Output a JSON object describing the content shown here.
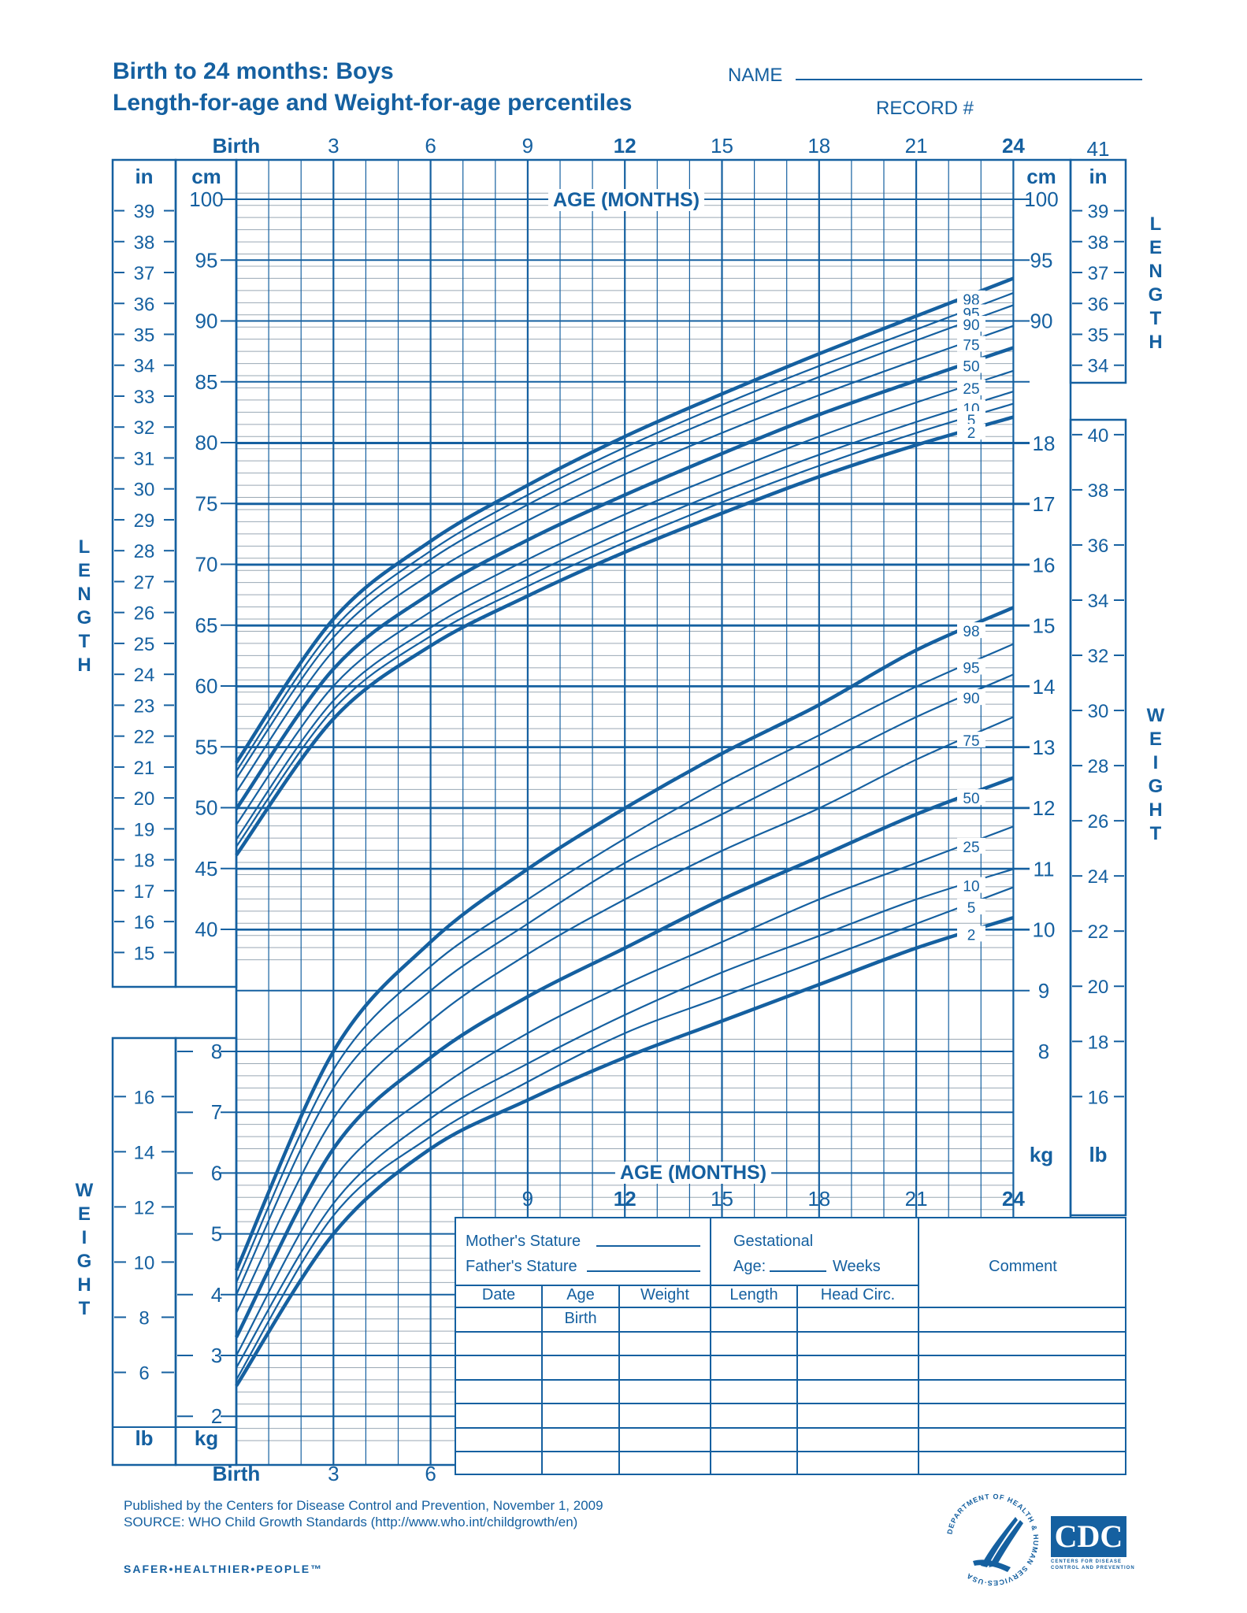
{
  "header": {
    "title_line1": "Birth to 24 months: Boys",
    "title_line2": "Length-for-age and Weight-for-age percentiles",
    "name_label": "NAME",
    "record_label": "RECORD #"
  },
  "axes": {
    "top_age_ticks": [
      "Birth",
      "3",
      "6",
      "9",
      "12",
      "15",
      "18",
      "21",
      "24"
    ],
    "bottom_age_ticks_left": [
      "Birth",
      "3",
      "6"
    ],
    "bottom_age_ticks_right": [
      "9",
      "12",
      "15",
      "18",
      "21",
      "24"
    ],
    "age_label": "AGE (MONTHS)",
    "top_right_in": "41",
    "length_cm_label": "cm",
    "length_in_label": "in",
    "weight_kg_label": "kg",
    "weight_lb_label": "lb",
    "side_length": "LENGTH",
    "side_weight": "WEIGHT"
  },
  "form": {
    "mothers_stature": "Mother's Stature",
    "fathers_stature": "Father's Stature",
    "gestational": "Gestational",
    "age_weeks_prefix": "Age:",
    "age_weeks_suffix": "Weeks",
    "comment": "Comment",
    "columns": [
      "Date",
      "Age",
      "Weight",
      "Length",
      "Head  Circ."
    ],
    "first_row_age": "Birth",
    "row_count": 7
  },
  "footer": {
    "published": "Published by the Centers for Disease Control and Prevention, November 1, 2009",
    "source": "SOURCE:  WHO Child Growth Standards (http://www.who.int/childgrowth/en)",
    "slogan": "SAFER•HEALTHIER•PEOPLE™",
    "hhs_seal": "DEPARTMENT OF HEALTH & HUMAN SERVICES·USA",
    "cdc_logo": "CDC",
    "cdc_sub1": "CENTERS FOR DISEASE",
    "cdc_sub2": "CONTROL AND PREVENTION"
  },
  "colors": {
    "ink": "#1560a0",
    "minor_grid": "#9aa8b4",
    "paper": "#ffffff"
  },
  "chart_data": [
    {
      "type": "line",
      "title": "Length-for-age percentiles, Boys, Birth to 24 months",
      "xlabel": "AGE (MONTHS)",
      "ylabel": "LENGTH (cm)",
      "secondary_ylabel": "LENGTH (in)",
      "x": [
        0,
        3,
        6,
        9,
        12,
        15,
        18,
        21,
        24
      ],
      "xlim": [
        0,
        24
      ],
      "ylim": [
        40,
        100
      ],
      "y_ticks_cm": [
        40,
        45,
        50,
        55,
        60,
        65,
        70,
        75,
        80,
        85,
        90,
        95,
        100
      ],
      "y_ticks_in": [
        15,
        16,
        17,
        18,
        19,
        20,
        21,
        22,
        23,
        24,
        25,
        26,
        27,
        28,
        29,
        30,
        31,
        32,
        33,
        34,
        35,
        36,
        37,
        38,
        39
      ],
      "right_y_ticks_cm": [
        90,
        95,
        100
      ],
      "right_y_ticks_in": [
        34,
        35,
        36,
        37,
        38,
        39
      ],
      "grid": true,
      "legend_position": "right end labels",
      "series": [
        {
          "name": "98",
          "values": [
            53.7,
            65.5,
            71.9,
            76.5,
            80.5,
            84.0,
            87.3,
            90.4,
            93.5
          ]
        },
        {
          "name": "95",
          "values": [
            53.0,
            64.7,
            71.1,
            75.7,
            79.6,
            83.1,
            86.3,
            89.3,
            92.3
          ]
        },
        {
          "name": "90",
          "values": [
            52.4,
            64.0,
            70.4,
            74.9,
            78.8,
            82.2,
            85.4,
            88.4,
            91.3
          ]
        },
        {
          "name": "75",
          "values": [
            51.3,
            62.9,
            69.2,
            73.6,
            77.4,
            80.8,
            83.9,
            86.8,
            89.6
          ]
        },
        {
          "name": "50",
          "values": [
            49.9,
            61.4,
            67.6,
            72.0,
            75.7,
            79.1,
            82.3,
            85.1,
            87.8
          ]
        },
        {
          "name": "25",
          "values": [
            48.6,
            60.0,
            66.1,
            70.4,
            74.1,
            77.4,
            80.5,
            83.3,
            85.9
          ]
        },
        {
          "name": "10",
          "values": [
            47.4,
            58.8,
            64.8,
            69.0,
            72.7,
            76.0,
            79.0,
            81.7,
            84.2
          ]
        },
        {
          "name": "5",
          "values": [
            46.8,
            58.1,
            64.1,
            68.2,
            71.8,
            75.1,
            78.1,
            80.8,
            83.2
          ]
        },
        {
          "name": "2",
          "values": [
            46.1,
            57.3,
            63.3,
            67.4,
            71.0,
            74.2,
            77.2,
            79.8,
            82.1
          ]
        }
      ]
    },
    {
      "type": "line",
      "title": "Weight-for-age percentiles, Boys, Birth to 24 months",
      "xlabel": "AGE (MONTHS)",
      "ylabel": "WEIGHT (kg)",
      "secondary_ylabel": "WEIGHT (lb)",
      "x": [
        0,
        3,
        6,
        9,
        12,
        15,
        18,
        21,
        24
      ],
      "xlim": [
        0,
        24
      ],
      "ylim": [
        1.6,
        18.5
      ],
      "y_ticks_kg_left": [
        2,
        3,
        4,
        5,
        6,
        7,
        8
      ],
      "y_ticks_lb_left": [
        6,
        8,
        10,
        12,
        14,
        16
      ],
      "y_ticks_kg_right": [
        8,
        9,
        10,
        11,
        12,
        13,
        14,
        15,
        16,
        17,
        18
      ],
      "y_ticks_lb_right": [
        16,
        18,
        20,
        22,
        24,
        26,
        28,
        30,
        32,
        34,
        36,
        38,
        40
      ],
      "grid": true,
      "legend_position": "right end labels",
      "series": [
        {
          "name": "98",
          "values": [
            4.4,
            8.0,
            9.8,
            11.0,
            12.0,
            12.9,
            13.7,
            14.6,
            15.3
          ]
        },
        {
          "name": "95",
          "values": [
            4.2,
            7.7,
            9.4,
            10.5,
            11.5,
            12.4,
            13.2,
            14.0,
            14.7
          ]
        },
        {
          "name": "90",
          "values": [
            4.0,
            7.4,
            9.0,
            10.1,
            11.1,
            11.9,
            12.7,
            13.5,
            14.2
          ]
        },
        {
          "name": "75",
          "values": [
            3.7,
            6.9,
            8.5,
            9.6,
            10.5,
            11.3,
            12.0,
            12.8,
            13.5
          ]
        },
        {
          "name": "50",
          "values": [
            3.3,
            6.4,
            7.9,
            8.9,
            9.7,
            10.5,
            11.2,
            11.9,
            12.5
          ]
        },
        {
          "name": "25",
          "values": [
            3.0,
            5.9,
            7.3,
            8.3,
            9.1,
            9.8,
            10.5,
            11.1,
            11.7
          ]
        },
        {
          "name": "10",
          "values": [
            2.8,
            5.5,
            6.9,
            7.8,
            8.6,
            9.3,
            9.9,
            10.5,
            11.0
          ]
        },
        {
          "name": "5",
          "values": [
            2.6,
            5.3,
            6.6,
            7.5,
            8.3,
            8.9,
            9.5,
            10.1,
            10.7
          ]
        },
        {
          "name": "2",
          "values": [
            2.5,
            5.0,
            6.4,
            7.2,
            7.9,
            8.5,
            9.1,
            9.7,
            10.2
          ]
        }
      ]
    }
  ]
}
